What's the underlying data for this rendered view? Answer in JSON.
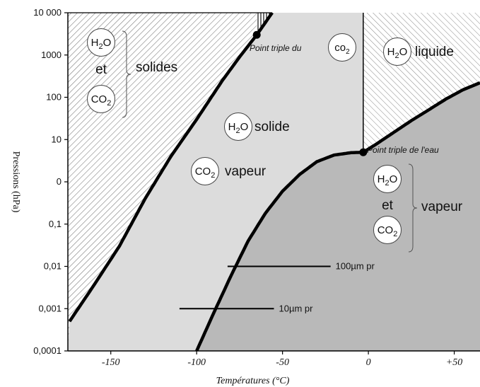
{
  "chart_data": {
    "type": "line",
    "title": "",
    "xlabel": "Températures (°C)",
    "ylabel": "Pressions (hPa)",
    "xlim": [
      -175,
      65
    ],
    "y_ticks": [
      "10 000",
      "1000",
      "100",
      "10",
      "0",
      "0,1",
      "0,01",
      "0,001",
      "0,0001"
    ],
    "x_ticks": [
      {
        "value": -150,
        "label": "-150"
      },
      {
        "value": -100,
        "label": "-100"
      },
      {
        "value": -50,
        "label": "-50"
      },
      {
        "value": 0,
        "label": "0"
      },
      {
        "value": 50,
        "label": "+50"
      }
    ],
    "series": [
      {
        "key": "co2_sublimation",
        "points": [
          [
            -174,
            0.0005
          ],
          [
            -160,
            0.0035
          ],
          [
            -145,
            0.03
          ],
          [
            -130,
            0.4
          ],
          [
            -115,
            4
          ],
          [
            -100,
            30
          ],
          [
            -85,
            250
          ],
          [
            -75,
            900
          ],
          [
            -65,
            3000
          ],
          [
            -56,
            10000
          ]
        ]
      },
      {
        "key": "h2o_sublimation",
        "points": [
          [
            -100,
            0.0001
          ],
          [
            -90,
            0.0008
          ],
          [
            -80,
            0.006
          ],
          [
            -70,
            0.04
          ],
          [
            -60,
            0.18
          ],
          [
            -50,
            0.6
          ],
          [
            -40,
            1.5
          ],
          [
            -30,
            3
          ],
          [
            -20,
            4.3
          ],
          [
            -10,
            4.9
          ],
          [
            -3,
            5
          ],
          [
            5,
            8
          ],
          [
            15,
            15
          ],
          [
            25,
            28
          ],
          [
            35,
            50
          ],
          [
            45,
            90
          ],
          [
            55,
            150
          ],
          [
            65,
            220
          ]
        ]
      }
    ],
    "triple_points": [
      {
        "label": "Point triple du",
        "formula": {
          "base": "co",
          "sub": "2"
        },
        "x": -65,
        "y": 3000
      },
      {
        "label": "Point triple de l'eau",
        "x": -3,
        "y": 5
      }
    ],
    "regions": {
      "solids": {
        "label": "solides",
        "and": "et"
      },
      "co2_gas": {
        "h2o_label": "solide",
        "co2_label": "vapeur"
      },
      "water": {
        "label": "liquide"
      },
      "vapour": {
        "label": "vapeur",
        "and": "et"
      }
    },
    "formulas": {
      "h2o": {
        "a": "H",
        "sub": "2",
        "b": "O"
      },
      "co2": {
        "a": "CO",
        "sub": "2"
      }
    },
    "segments": [
      {
        "label": "100µm pr",
        "x_start": -82,
        "x_end": -22,
        "y": 0.01
      },
      {
        "label": "10µm pr",
        "x_start": -110,
        "x_end": -55,
        "y": 0.001
      }
    ]
  }
}
